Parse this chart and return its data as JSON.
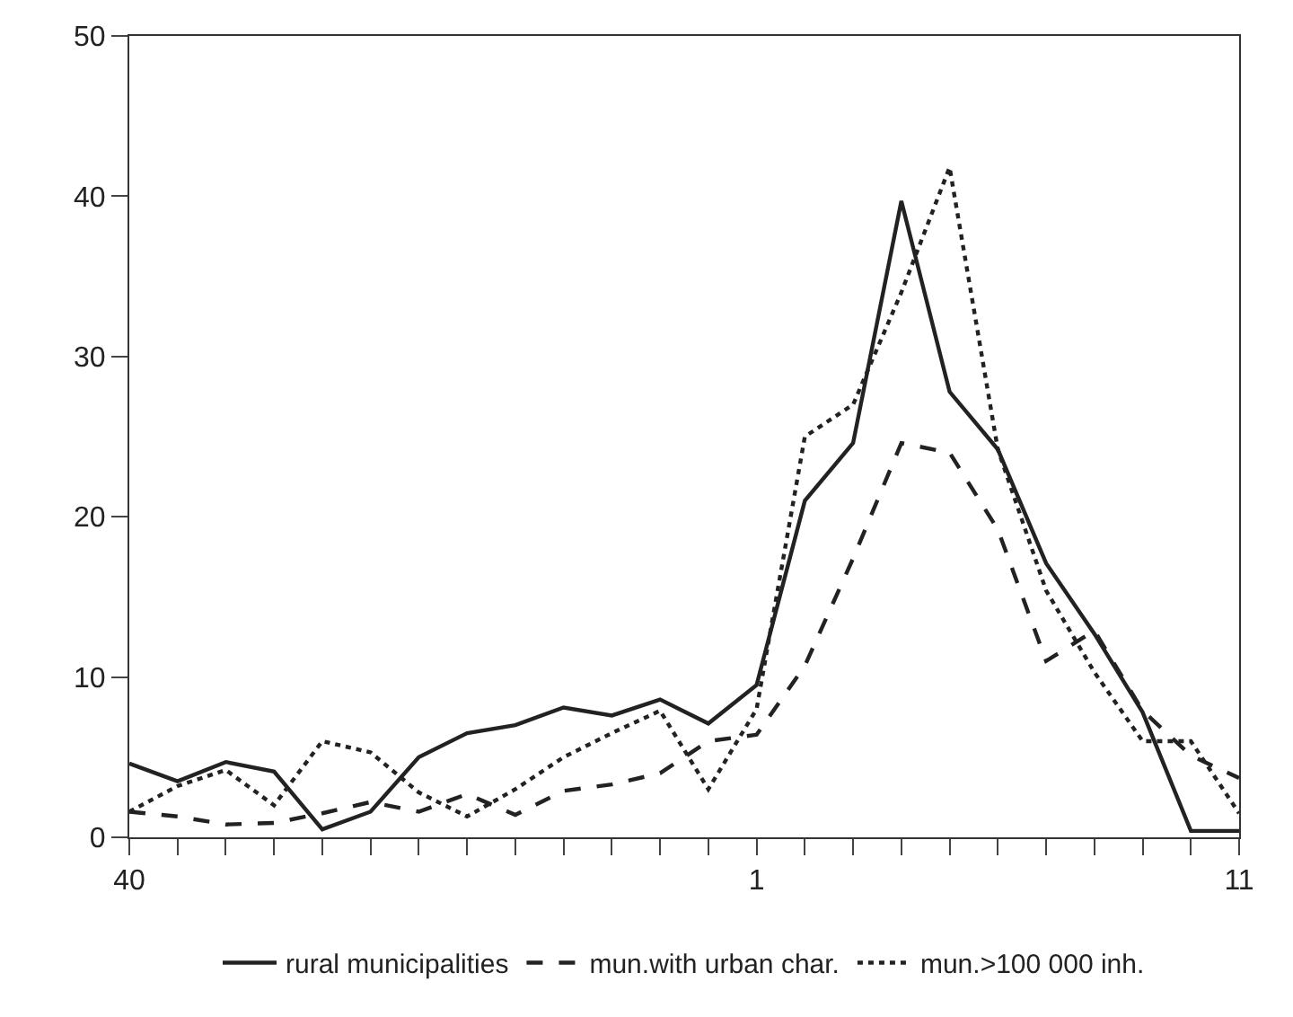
{
  "chart_data": {
    "type": "line",
    "categories": [
      "40",
      null,
      null,
      null,
      null,
      null,
      null,
      null,
      null,
      null,
      null,
      null,
      null,
      "1",
      null,
      null,
      null,
      null,
      null,
      null,
      null,
      null,
      null,
      "11"
    ],
    "ylim": [
      0,
      50
    ],
    "yticks": [
      0,
      10,
      20,
      30,
      40,
      50
    ],
    "grid": false,
    "legend": "bottom",
    "series": [
      {
        "name": "rural municipalities",
        "color": "#222222",
        "line_style": "solid",
        "values": [
          4.6,
          3.5,
          4.7,
          4.1,
          0.5,
          1.6,
          5.0,
          6.5,
          7.0,
          8.1,
          7.6,
          8.6,
          7.1,
          9.5,
          21.0,
          24.6,
          39.7,
          27.8,
          24.2,
          17.1,
          12.7,
          7.8,
          0.4,
          0.4
        ]
      },
      {
        "name": "mun.with urban char.",
        "color": "#222222",
        "line_style": "dashed",
        "values": [
          1.6,
          1.3,
          0.8,
          0.9,
          1.5,
          2.2,
          1.6,
          2.7,
          1.4,
          2.9,
          3.3,
          4.0,
          6.0,
          6.4,
          10.7,
          17.4,
          24.6,
          24.0,
          19.2,
          11.0,
          12.9,
          7.9,
          5.1,
          3.7
        ]
      },
      {
        "name": "mun.>100 000 inh.",
        "color": "#222222",
        "line_style": "dotted",
        "values": [
          1.6,
          3.2,
          4.2,
          2.0,
          6.0,
          5.3,
          2.8,
          1.3,
          3.0,
          5.0,
          6.5,
          7.9,
          3.0,
          8.0,
          25.0,
          27.0,
          34.0,
          41.8,
          24.2,
          15.4,
          10.3,
          6.0,
          6.0,
          1.5
        ]
      }
    ]
  }
}
